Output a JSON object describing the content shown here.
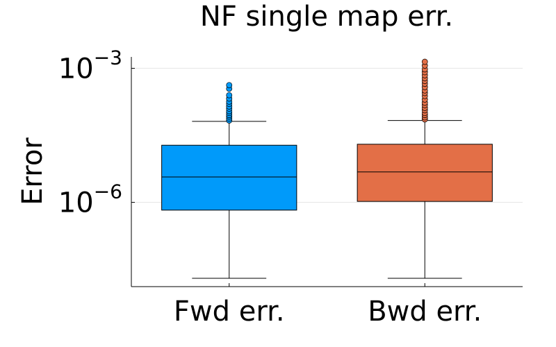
{
  "chart_data": {
    "type": "box",
    "title": "NF single map err.",
    "xlabel": "",
    "ylabel": "Error",
    "yscale": "log10",
    "ylim": [
      1.3e-08,
      0.0018
    ],
    "yticks": [
      {
        "value": 1e-06,
        "base": "10",
        "exp": "−6"
      },
      {
        "value": 0.001,
        "base": "10",
        "exp": "−3"
      }
    ],
    "grid": true,
    "legend": "none",
    "categories": [
      "Fwd err.",
      "Bwd err."
    ],
    "series": [
      {
        "color": "#009AFA",
        "whisker_low": 2e-08,
        "q1": 6.7e-07,
        "median": 3.7e-06,
        "q3": 1.9e-05,
        "whisker_high": 6.5e-05,
        "outliers": [
          6.8e-05,
          7.5e-05,
          8.3e-05,
          9e-05,
          0.0001,
          0.00011,
          0.000125,
          0.00014,
          0.00016,
          0.00018,
          0.00021,
          0.00025,
          0.00035,
          0.00042
        ]
      },
      {
        "color": "#E36F47",
        "whisker_low": 2e-08,
        "q1": 1.05e-06,
        "median": 4.8e-06,
        "q3": 2e-05,
        "whisker_high": 6.8e-05,
        "outliers": [
          7.2e-05,
          8e-05,
          9e-05,
          0.0001,
          0.000115,
          0.00013,
          0.00015,
          0.00017,
          0.0002,
          0.00024,
          0.00028,
          0.00032,
          0.00038,
          0.00045,
          0.00052,
          0.0006,
          0.0007,
          0.00082,
          0.00095,
          0.00115,
          0.0014
        ]
      }
    ]
  }
}
